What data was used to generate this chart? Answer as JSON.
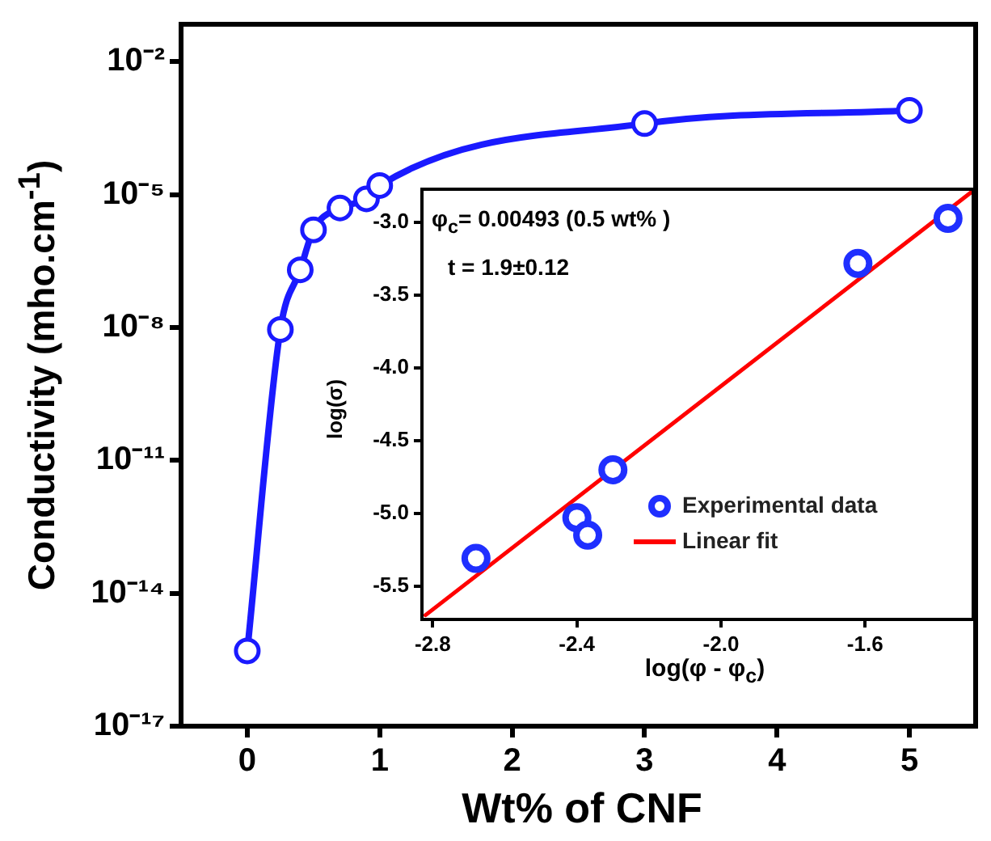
{
  "chart_data": [
    {
      "type": "line",
      "xlabel": "Wt% of CNF",
      "ylabel": "Conductivity (mho.cm$^{-1}$)",
      "x": [
        0,
        0.25,
        0.4,
        0.5,
        0.7,
        0.9,
        1,
        3,
        5
      ],
      "series": [
        {
          "color": "#1a1aff",
          "values": [
            5e-16,
            9e-09,
            2e-07,
            1.6e-06,
            5e-06,
            8e-06,
            1.6e-05,
            0.0004,
            0.0008
          ]
        }
      ],
      "marker": "circle",
      "log": "y",
      "grid": false,
      "legend": false,
      "xlim": [
        -0.5,
        5.5
      ],
      "xticks": [
        0,
        1,
        2,
        3,
        4,
        5
      ],
      "ylim": [
        1e-17,
        0.07
      ],
      "yticks": [
        {
          "value": 1e-17,
          "label": "10⁻¹⁷"
        },
        {
          "value": 1e-14,
          "label": "10⁻¹⁴"
        },
        {
          "value": 1e-11,
          "label": "10⁻¹¹"
        },
        {
          "value": 1e-08,
          "label": "10⁻⁸"
        },
        {
          "value": 1e-05,
          "label": "10⁻⁵"
        },
        {
          "value": 0.01,
          "label": "10⁻²"
        }
      ]
    },
    {
      "type": "scatter",
      "xlabel": "log(φ - φ$_{c}$)",
      "ylabel": "log(σ)",
      "annotations": [
        "φ$_{c}$= 0.00493 (0.5 wt% )",
        "t = 1.9±0.12"
      ],
      "series": [
        {
          "name": "Experimental data",
          "color": "#1f2fff",
          "x": [
            -2.68,
            -2.4,
            -2.37,
            -2.3,
            -1.62,
            -1.37
          ],
          "values": [
            -5.31,
            -5.03,
            -5.15,
            -4.7,
            -3.28,
            -2.97
          ]
        },
        {
          "name": "Linear fit",
          "type": "line",
          "marker": "none",
          "color": "#ff0000",
          "x": [
            -2.82,
            -1.3
          ],
          "values": [
            -5.7,
            -2.78
          ]
        }
      ],
      "marker": "circle",
      "grid": false,
      "legend": "bottom right",
      "xlim": [
        -2.83,
        -1.3
      ],
      "xticks": [
        {
          "value": -2.8,
          "label": "-2.8"
        },
        {
          "value": -2.4,
          "label": "-2.4"
        },
        {
          "value": -2,
          "label": "-2.0"
        },
        {
          "value": -1.6,
          "label": "-1.6"
        }
      ],
      "ylim": [
        -5.73,
        -2.77
      ],
      "yticks": [
        {
          "value": -3,
          "label": "-3.0"
        },
        {
          "value": -3.5,
          "label": "-3.5"
        },
        {
          "value": -4,
          "label": "-4.0"
        },
        {
          "value": -4.5,
          "label": "-4.5"
        },
        {
          "value": -5,
          "label": "-5.0"
        },
        {
          "value": -5.5,
          "label": "-5.5"
        }
      ]
    }
  ]
}
